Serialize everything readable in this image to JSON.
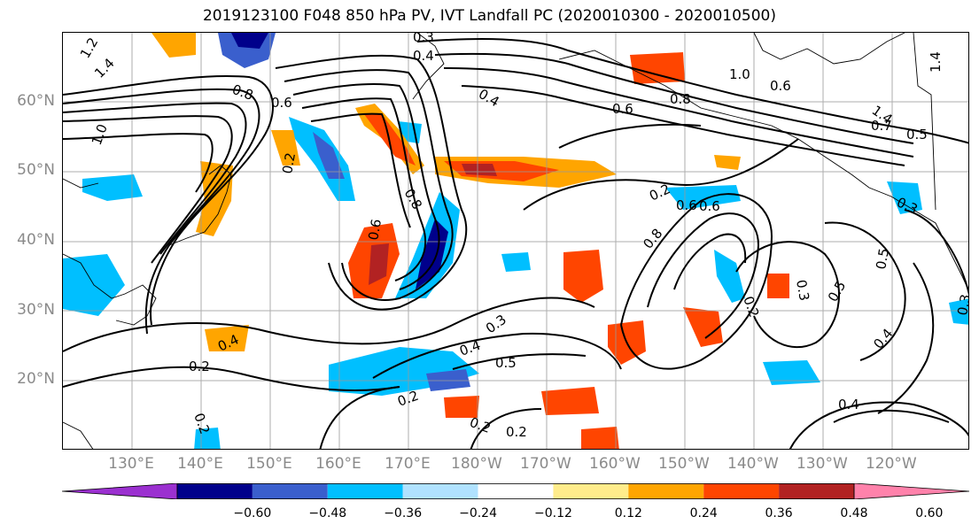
{
  "title": "2019123100 F048 850 hPa PV, IVT Landfall PC (2020010300 - 2020010500)",
  "lat_labels": [
    {
      "label": "60°N",
      "lat": 60
    },
    {
      "label": "50°N",
      "lat": 50
    },
    {
      "label": "40°N",
      "lat": 40
    },
    {
      "label": "30°N",
      "lat": 30
    },
    {
      "label": "20°N",
      "lat": 20
    }
  ],
  "lon_labels": [
    {
      "label": "130°E",
      "lon": 130
    },
    {
      "label": "140°E",
      "lon": 140
    },
    {
      "label": "150°E",
      "lon": 150
    },
    {
      "label": "160°E",
      "lon": 160
    },
    {
      "label": "170°E",
      "lon": 170
    },
    {
      "label": "180°W",
      "lon": 180
    },
    {
      "label": "170°W",
      "lon": 190
    },
    {
      "label": "160°W",
      "lon": 200
    },
    {
      "label": "150°W",
      "lon": 210
    },
    {
      "label": "140°W",
      "lon": 220
    },
    {
      "label": "130°W",
      "lon": 230
    },
    {
      "label": "120°W",
      "lon": 240
    }
  ],
  "colorbar": {
    "ticks": [
      "−0.60",
      "−0.48",
      "−0.36",
      "−0.24",
      "−0.12",
      "0.12",
      "0.24",
      "0.36",
      "0.48",
      "0.60"
    ],
    "colors": [
      "#9b30d0",
      "#00008b",
      "#3a5fcd",
      "#00bfff",
      "#b0e2ff",
      "#ffffff",
      "#ffec8b",
      "#ffa500",
      "#ff4500",
      "#b22222",
      "#ff82ab"
    ]
  },
  "contour_labels": [
    {
      "text": "1.2"
    },
    {
      "text": "1.4"
    },
    {
      "text": "0.8"
    },
    {
      "text": "1.0"
    },
    {
      "text": "0.6"
    },
    {
      "text": "0.3"
    },
    {
      "text": "0.4"
    },
    {
      "text": "0.4"
    },
    {
      "text": "0.6"
    },
    {
      "text": "0.8"
    },
    {
      "text": "1.0"
    },
    {
      "text": "0.6"
    },
    {
      "text": "0.5"
    },
    {
      "text": "0.7"
    },
    {
      "text": "1.4"
    },
    {
      "text": "1.4"
    },
    {
      "text": "0.2"
    },
    {
      "text": "0.6"
    },
    {
      "text": "0.3"
    },
    {
      "text": "0.5"
    },
    {
      "text": "0.2"
    },
    {
      "text": "0.3"
    },
    {
      "text": "0.5"
    },
    {
      "text": "0.4"
    },
    {
      "text": "0.4"
    },
    {
      "text": "0.3"
    },
    {
      "text": "0.5"
    },
    {
      "text": "0.2"
    },
    {
      "text": "0.2"
    },
    {
      "text": "0.2"
    },
    {
      "text": "0.4"
    },
    {
      "text": "0.2"
    },
    {
      "text": "0.2"
    },
    {
      "text": "0.4"
    },
    {
      "text": "0.8"
    },
    {
      "text": "0.6"
    },
    {
      "text": "0.6"
    },
    {
      "text": "0.8"
    },
    {
      "text": "0.2"
    },
    {
      "text": "0.3"
    }
  ]
}
